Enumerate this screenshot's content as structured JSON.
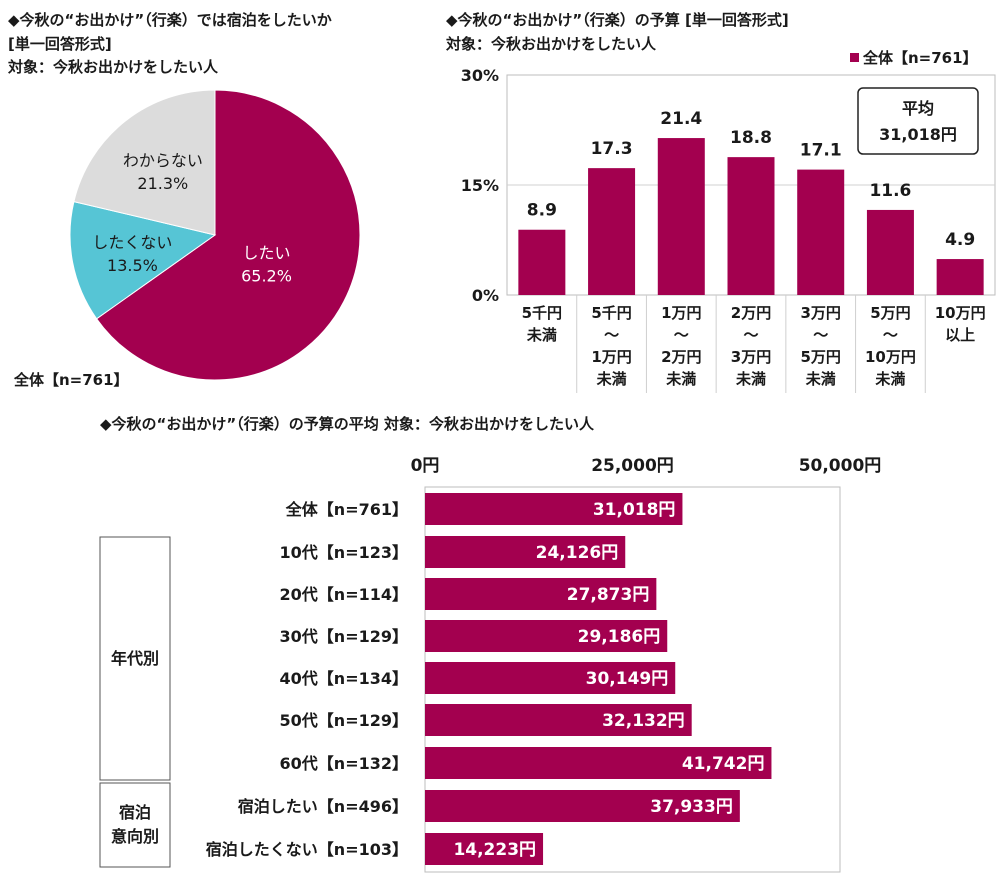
{
  "colors": {
    "primary": "#a3004f",
    "secondary": "#56c5d5",
    "neutral": "#dcdcdc"
  },
  "pie": {
    "title_line1": "◆今秋の“お出かけ”（行楽）では宿泊をしたいか",
    "title_line2": "[単一回答形式]",
    "title_line3": "対象：今秋お出かけをしたい人",
    "footnote": "全体【n=761】"
  },
  "column": {
    "title_line1": "◆今秋の“お出かけ”（行楽）の予算 [単一回答形式]",
    "title_line2": "対象：今秋お出かけをしたい人",
    "legend": "全体【n=761】",
    "avg_label_line1": "平均",
    "avg_label_line2": "31,018円"
  },
  "bar": {
    "title": "◆今秋の“お出かけ”（行楽）の予算の平均 対象：今秋お出かけをしたい人",
    "group_age": "年代別",
    "group_stay_line1": "宿泊",
    "group_stay_line2": "意向別"
  },
  "chart_data": [
    {
      "type": "pie",
      "slices": [
        {
          "label": "したい",
          "value": 65.2,
          "display": "65.2%",
          "color": "#a3004f"
        },
        {
          "label": "したくない",
          "value": 13.5,
          "display": "13.5%",
          "color": "#56c5d5"
        },
        {
          "label": "わからない",
          "value": 21.3,
          "display": "21.3%",
          "color": "#dcdcdc"
        }
      ]
    },
    {
      "type": "bar",
      "categories": [
        [
          "5千円",
          "未満"
        ],
        [
          "5千円",
          "～",
          "1万円",
          "未満"
        ],
        [
          "1万円",
          "～",
          "2万円",
          "未満"
        ],
        [
          "2万円",
          "～",
          "3万円",
          "未満"
        ],
        [
          "3万円",
          "～",
          "5万円",
          "未満"
        ],
        [
          "5万円",
          "～",
          "10万円",
          "未満"
        ],
        [
          "10万円",
          "以上"
        ]
      ],
      "values": [
        8.9,
        17.3,
        21.4,
        18.8,
        17.1,
        11.6,
        4.9
      ],
      "labels": [
        "8.9",
        "17.3",
        "21.4",
        "18.8",
        "17.1",
        "11.6",
        "4.9"
      ],
      "ylim": [
        0,
        30
      ],
      "yticks": [
        0,
        15,
        30
      ],
      "ytick_labels": [
        "0%",
        "15%",
        "30%"
      ]
    },
    {
      "type": "bar",
      "orientation": "horizontal",
      "categories": [
        "全体【n=761】",
        "10代【n=123】",
        "20代【n=114】",
        "30代【n=129】",
        "40代【n=134】",
        "50代【n=129】",
        "60代【n=132】",
        "宿泊したい【n=496】",
        "宿泊したくない【n=103】"
      ],
      "values": [
        31018,
        24126,
        27873,
        29186,
        30149,
        32132,
        41742,
        37933,
        14223
      ],
      "labels": [
        "31,018円",
        "24,126円",
        "27,873円",
        "29,186円",
        "30,149円",
        "32,132円",
        "41,742円",
        "37,933円",
        "14,223円"
      ],
      "xlim": [
        0,
        50000
      ],
      "xticks": [
        0,
        25000,
        50000
      ],
      "xtick_labels": [
        "0円",
        "25,000円",
        "50,000円"
      ]
    }
  ]
}
